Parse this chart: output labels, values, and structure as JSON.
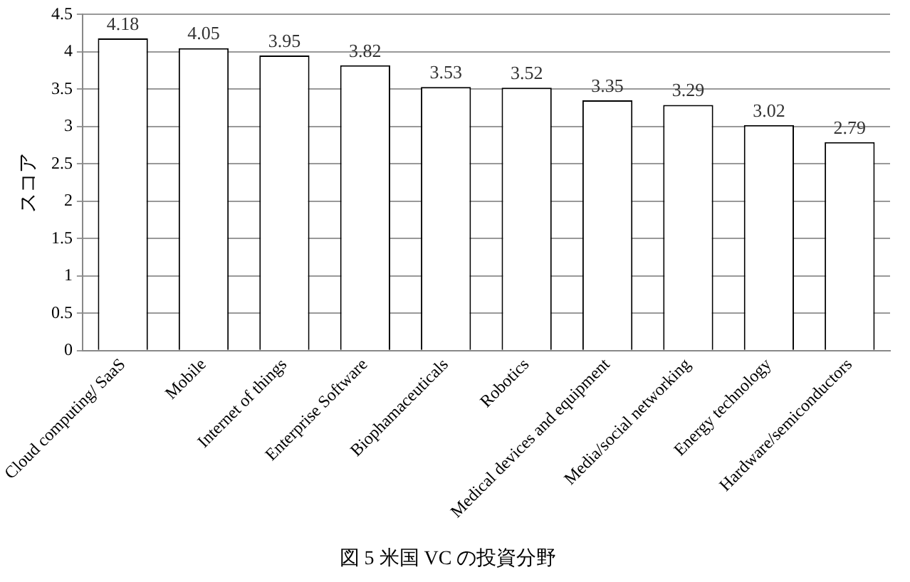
{
  "chart_data": {
    "type": "bar",
    "title": "図 5 米国 VC の投資分野",
    "ylabel": "スコア",
    "categories": [
      "Cloud computing/ SaaS",
      "Mobile",
      "Internet of things",
      "Enterprise Software",
      "Biophamaceuticals",
      "Robotics",
      "Medical devices and equipment",
      "Media/social networking",
      "Energy technology",
      "Hardware/semiconductors"
    ],
    "values": [
      4.18,
      4.05,
      3.95,
      3.82,
      3.53,
      3.52,
      3.35,
      3.29,
      3.02,
      2.79
    ],
    "color": "#ffffff",
    "ylim": [
      0,
      4.5
    ],
    "yticks": [
      0,
      0.5,
      1,
      1.5,
      2,
      2.5,
      3,
      3.5,
      4,
      4.5
    ],
    "grid": "y",
    "data_labels": true
  }
}
